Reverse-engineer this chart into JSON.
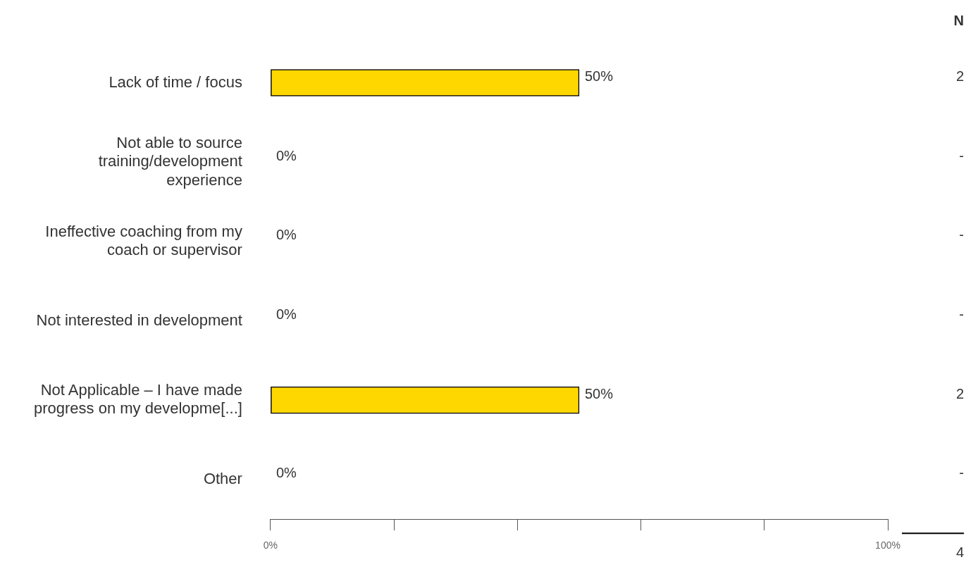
{
  "chart_data": {
    "type": "bar",
    "orientation": "horizontal",
    "categories": [
      "Lack of time / focus",
      "Not able to source training/development experience",
      "Ineffective coaching from my coach or supervisor",
      "Not interested in development",
      "Not Applicable – I have made progress on my developme[...]",
      "Other"
    ],
    "values": [
      50,
      0,
      0,
      0,
      50,
      0
    ],
    "value_labels": [
      "50%",
      "0%",
      "0%",
      "0%",
      "50%",
      "0%"
    ],
    "color": "#ffd700",
    "xlim": [
      0,
      100
    ],
    "xticks": [
      {
        "value": 0,
        "label": "0%"
      },
      {
        "value": 20,
        "label": null
      },
      {
        "value": 40,
        "label": null
      },
      {
        "value": 60,
        "label": null
      },
      {
        "value": 80,
        "label": null
      },
      {
        "value": 100,
        "label": "100%"
      }
    ],
    "grid": false,
    "annotations": [
      "N",
      "2",
      "-",
      "-",
      "-",
      "2",
      "-",
      "4"
    ]
  }
}
